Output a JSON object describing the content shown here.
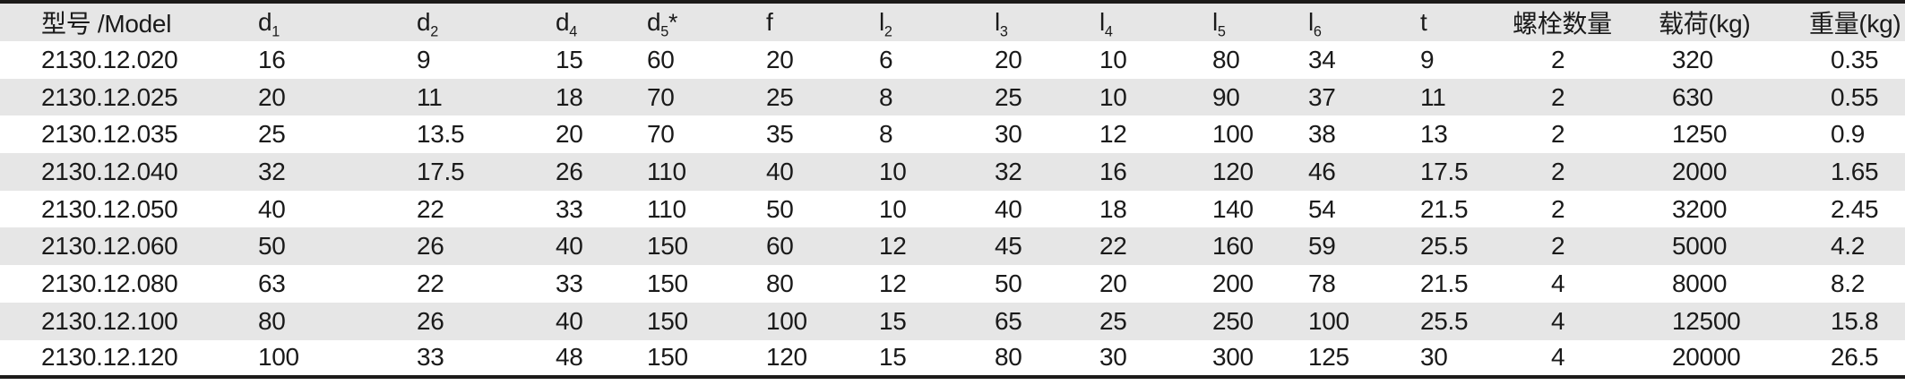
{
  "table": {
    "columns": [
      {
        "id": "model",
        "base": "型号 /Model"
      },
      {
        "id": "d1",
        "base": "d",
        "sub": "1"
      },
      {
        "id": "d2",
        "base": "d",
        "sub": "2"
      },
      {
        "id": "d4",
        "base": "d",
        "sub": "4"
      },
      {
        "id": "d5",
        "base": "d",
        "sub": "5",
        "after": "*"
      },
      {
        "id": "f",
        "base": "f"
      },
      {
        "id": "l2",
        "base": "l",
        "sub": "2"
      },
      {
        "id": "l3",
        "base": "l",
        "sub": "3"
      },
      {
        "id": "l4",
        "base": "l",
        "sub": "4"
      },
      {
        "id": "l5",
        "base": "l",
        "sub": "5"
      },
      {
        "id": "l6",
        "base": "l",
        "sub": "6"
      },
      {
        "id": "t",
        "base": "t"
      },
      {
        "id": "bolt-count",
        "base": "螺栓数量"
      },
      {
        "id": "load",
        "base": "载荷(kg)"
      },
      {
        "id": "weight",
        "base": "重量(kg)"
      }
    ],
    "rows": [
      [
        "2130.12.020",
        "16",
        "9",
        "15",
        "60",
        "20",
        "6",
        "20",
        "10",
        "80",
        "34",
        "9",
        "2",
        "320",
        "0.35"
      ],
      [
        "2130.12.025",
        "20",
        "11",
        "18",
        "70",
        "25",
        "8",
        "25",
        "10",
        "90",
        "37",
        "11",
        "2",
        "630",
        "0.55"
      ],
      [
        "2130.12.035",
        "25",
        "13.5",
        "20",
        "70",
        "35",
        "8",
        "30",
        "12",
        "100",
        "38",
        "13",
        "2",
        "1250",
        "0.9"
      ],
      [
        "2130.12.040",
        "32",
        "17.5",
        "26",
        "110",
        "40",
        "10",
        "32",
        "16",
        "120",
        "46",
        "17.5",
        "2",
        "2000",
        "1.65"
      ],
      [
        "2130.12.050",
        "40",
        "22",
        "33",
        "110",
        "50",
        "10",
        "40",
        "18",
        "140",
        "54",
        "21.5",
        "2",
        "3200",
        "2.45"
      ],
      [
        "2130.12.060",
        "50",
        "26",
        "40",
        "150",
        "60",
        "12",
        "45",
        "22",
        "160",
        "59",
        "25.5",
        "2",
        "5000",
        "4.2"
      ],
      [
        "2130.12.080",
        "63",
        "22",
        "33",
        "150",
        "80",
        "12",
        "50",
        "20",
        "200",
        "78",
        "21.5",
        "4",
        "8000",
        "8.2"
      ],
      [
        "2130.12.100",
        "80",
        "26",
        "40",
        "150",
        "100",
        "15",
        "65",
        "25",
        "250",
        "100",
        "25.5",
        "4",
        "12500",
        "15.8"
      ],
      [
        "2130.12.120",
        "100",
        "33",
        "48",
        "150",
        "120",
        "15",
        "80",
        "30",
        "300",
        "125",
        "30",
        "4",
        "20000",
        "26.5"
      ]
    ]
  },
  "colors": {
    "header_bg": "#e6e6e6",
    "stripe_bg": "#e6e6e6",
    "rule": "#1c1a19",
    "text": "#1a1a1a"
  }
}
